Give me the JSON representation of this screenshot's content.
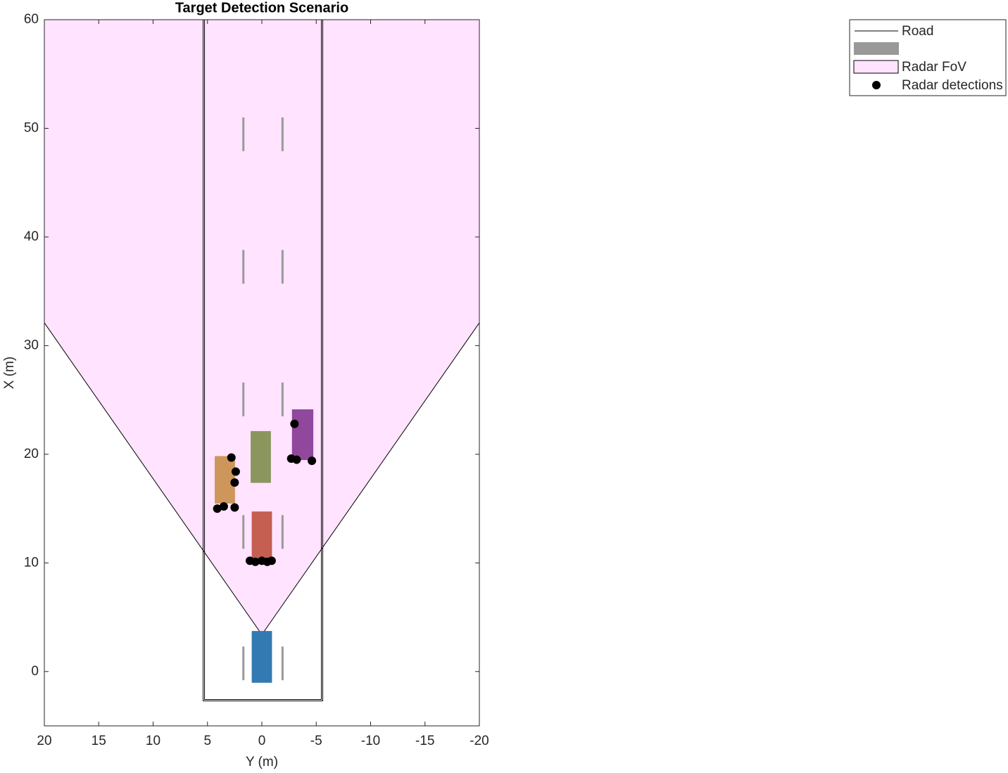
{
  "chart_data": {
    "type": "scatter",
    "title": "Target Detection Scenario",
    "xlabel": "Y (m)",
    "ylabel": "X (m)",
    "xlim": [
      20,
      -20
    ],
    "ylim": [
      -5,
      60
    ],
    "xticks": [
      20,
      15,
      10,
      5,
      0,
      -5,
      -10,
      -15,
      -20
    ],
    "yticks": [
      0,
      10,
      20,
      30,
      40,
      50,
      60
    ],
    "road": {
      "name": "Road",
      "color": "#000000",
      "left": 5.4,
      "right": -5.6,
      "start": -2.7,
      "end": 60
    },
    "lane_markings": {
      "color": "#999999",
      "y": [
        1.7,
        -1.9
      ],
      "dashes": [
        [
          47.9,
          51.0
        ],
        [
          35.7,
          38.8
        ],
        [
          23.5,
          26.6
        ],
        [
          11.3,
          14.4
        ],
        [
          -0.8,
          2.3
        ]
      ]
    },
    "fov": {
      "name": "Radar FoV",
      "color": "#ffe3ff",
      "apex": [
        0,
        3.4
      ],
      "left_edge": [
        20,
        32.1
      ],
      "right_edge": [
        -20,
        32.1
      ]
    },
    "vehicles": [
      {
        "color": "#3b8fd0",
        "y": [
          0.9,
          -0.9
        ],
        "x": [
          -1.0,
          3.7
        ]
      },
      {
        "color": "#e8705f",
        "y": [
          0.9,
          -0.9
        ],
        "x": [
          10.2,
          14.7
        ]
      },
      {
        "color": "#a3b06e",
        "y": [
          1.0,
          -0.8
        ],
        "x": [
          17.4,
          22.1
        ]
      },
      {
        "color": "#f2b06a",
        "y": [
          4.3,
          2.5
        ],
        "x": [
          15.5,
          19.8
        ]
      },
      {
        "color": "#a955b7",
        "y": [
          -2.8,
          -4.7
        ],
        "x": [
          19.5,
          24.1
        ]
      }
    ],
    "detections": {
      "name": "Radar detections",
      "color": "#000000",
      "x": [
        4.1,
        3.5,
        2.5,
        2.8,
        2.4,
        2.5,
        1.1,
        0.6,
        0.0,
        -0.5,
        -0.9,
        -3.0,
        -2.7,
        -3.2,
        -4.6
      ],
      "y": [
        15.0,
        15.2,
        15.1,
        19.7,
        18.4,
        17.4,
        10.2,
        10.1,
        10.2,
        10.1,
        10.2,
        22.8,
        19.6,
        19.5,
        19.4
      ]
    }
  }
}
